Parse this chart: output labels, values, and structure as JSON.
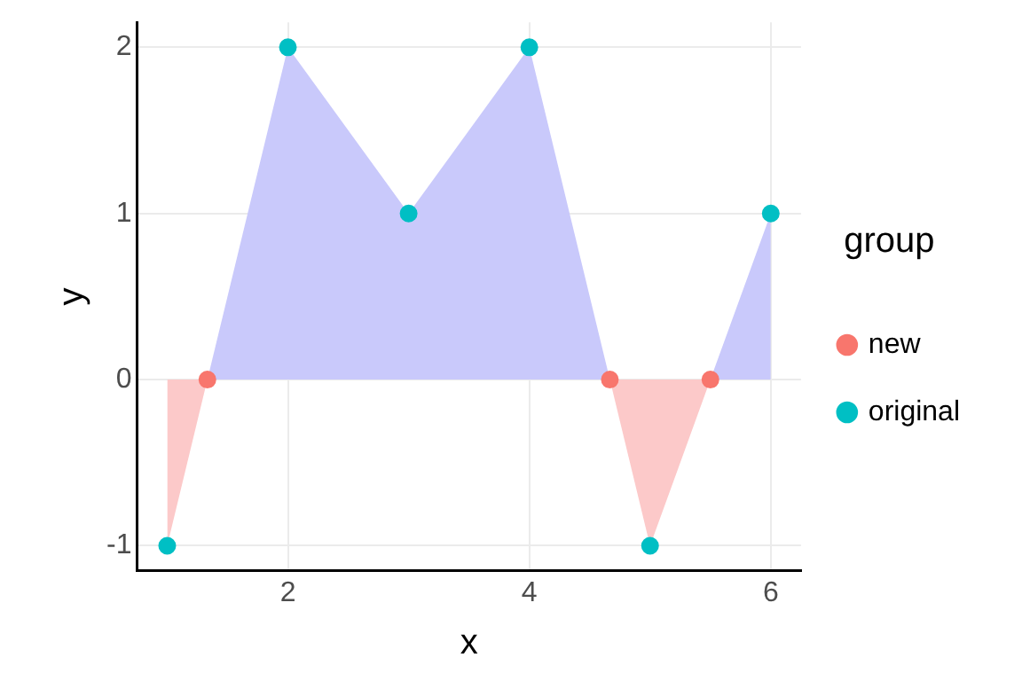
{
  "chart_data": {
    "type": "scatter",
    "xlabel": "x",
    "ylabel": "y",
    "legend_title": "group",
    "xlim": [
      0.75,
      6.25
    ],
    "xticks": [
      2,
      4,
      6
    ],
    "ylim": [
      -1.15,
      2.15
    ],
    "yticks": [
      -1,
      0,
      1,
      2
    ],
    "grid": true,
    "legend": "right",
    "series": [
      {
        "type": "area",
        "color": "#c9c9fb",
        "x": [
          1,
          1.333,
          2,
          3,
          4,
          4.667,
          5,
          5.5,
          6
        ],
        "values": [
          0,
          0,
          2,
          1,
          2,
          0,
          0,
          0,
          1
        ]
      },
      {
        "type": "area",
        "color": "#fcc9c9",
        "x": [
          1,
          1.333,
          2,
          3,
          4,
          4.667,
          5,
          5.5,
          6
        ],
        "values": [
          -1,
          0,
          0,
          0,
          0,
          0,
          -1,
          0,
          0
        ]
      },
      {
        "name": "new",
        "marker": "circle",
        "color": "#f8766d",
        "x": [
          1.333,
          4.667,
          5.5
        ],
        "values": [
          0,
          0,
          0
        ]
      },
      {
        "name": "original",
        "marker": "circle",
        "color": "#00bfc4",
        "x": [
          1,
          2,
          3,
          4,
          5,
          6
        ],
        "values": [
          -1,
          2,
          1,
          2,
          -1,
          1
        ]
      }
    ]
  }
}
